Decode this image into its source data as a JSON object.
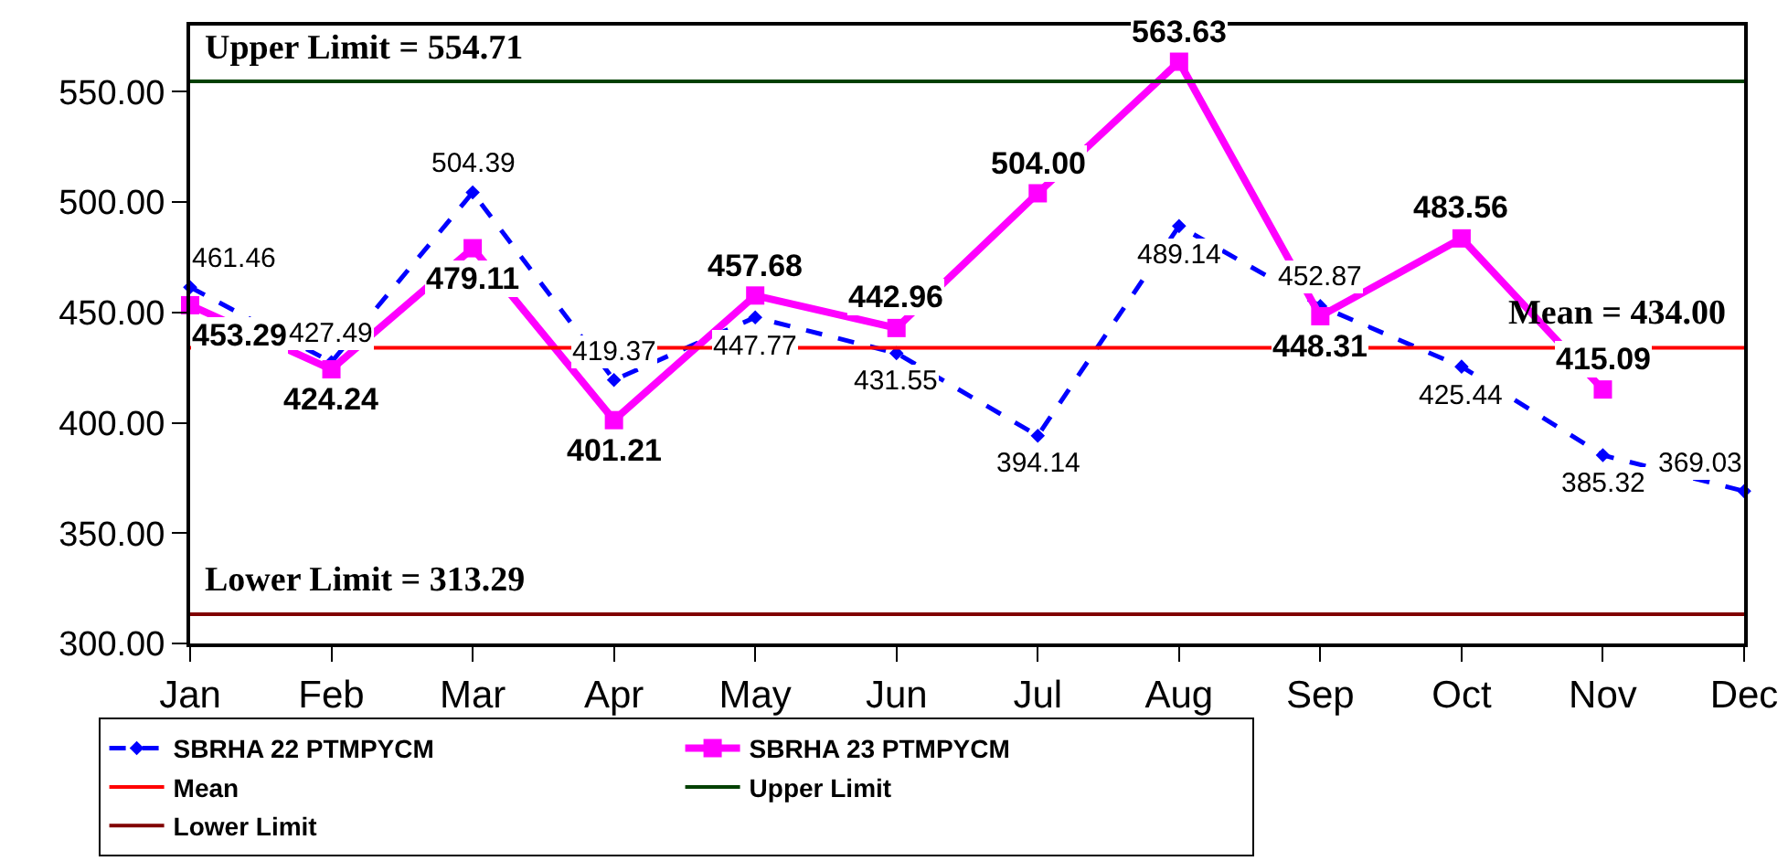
{
  "chart_data": {
    "type": "line",
    "categories": [
      "Jan",
      "Feb",
      "Mar",
      "Apr",
      "May",
      "Jun",
      "Jul",
      "Aug",
      "Sep",
      "Oct",
      "Nov",
      "Dec"
    ],
    "series": [
      {
        "name": "SBRHA 22 PTMPYCM",
        "color": "#0000ff",
        "marker": "diamond",
        "line_style": "dashed",
        "values": [
          461.46,
          427.49,
          504.39,
          419.37,
          447.77,
          431.55,
          394.14,
          489.14,
          452.87,
          425.44,
          385.32,
          369.03
        ],
        "value_labels": [
          "461.46",
          "427.49",
          "504.39",
          "419.37",
          "447.77",
          "431.55",
          "394.14",
          "489.14",
          "452.87",
          "425.44",
          "385.32",
          "369.03"
        ]
      },
      {
        "name": "SBRHA 23 PTMPYCM",
        "color": "#ff00ff",
        "marker": "square",
        "line_style": "solid",
        "values": [
          453.29,
          424.24,
          479.11,
          401.21,
          457.68,
          442.96,
          504.0,
          563.63,
          448.31,
          483.56,
          415.09,
          null
        ],
        "value_labels": [
          "453.29",
          "424.24",
          "479.11",
          "401.21",
          "457.68",
          "442.96",
          "504.00",
          "563.63",
          "448.31",
          "483.56",
          "415.09",
          null
        ]
      }
    ],
    "ylim": [
      300,
      580
    ],
    "yticks": [
      {
        "value": 300,
        "label": "300.00"
      },
      {
        "value": 350,
        "label": "350.00"
      },
      {
        "value": 400,
        "label": "400.00"
      },
      {
        "value": 450,
        "label": "450.00"
      },
      {
        "value": 500,
        "label": "500.00"
      },
      {
        "value": 550,
        "label": "550.00"
      }
    ],
    "ref_lines": [
      {
        "axis": "y",
        "value": 434.0,
        "label": "Mean",
        "color": "#ff0000"
      },
      {
        "axis": "y",
        "value": 554.71,
        "label": "Upper Limit",
        "color": "#004000"
      },
      {
        "axis": "y",
        "value": 313.29,
        "label": "Lower Limit",
        "color": "#800000"
      }
    ],
    "annotations": [
      {
        "text": "Upper Limit = 554.71",
        "x": "Jan",
        "y": 554.71
      },
      {
        "text": "Mean = 434.00",
        "x": "Dec",
        "y": 434.0
      },
      {
        "text": "Lower Limit = 313.29",
        "x": "Jan",
        "y": 313.29
      }
    ],
    "grid": false,
    "legend": "bottom"
  }
}
